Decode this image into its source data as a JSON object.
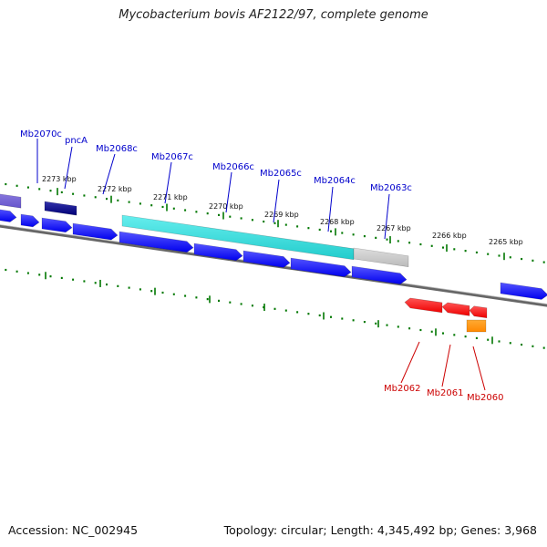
{
  "title": "Mycobacterium bovis AF2122/97, complete genome",
  "footer": {
    "accession": "Accession: NC_002945",
    "summary": "Topology: circular; Length: 4,345,492 bp; Genes: 3,968"
  },
  "tick_labels": [
    "2273 kbp",
    "2272 kbp",
    "2271 kbp",
    "2270 kbp",
    "2269 kbp",
    "2268 kbp",
    "2267 kbp",
    "2266 kbp",
    "2265 kbp"
  ],
  "gene_labels_forward": [
    "Mb2070c",
    "pncA",
    "Mb2068c",
    "Mb2067c",
    "Mb2066c",
    "Mb2065c",
    "Mb2064c",
    "Mb2063c"
  ],
  "gene_labels_reverse": [
    "Mb2062",
    "Mb2061",
    "Mb2060"
  ],
  "colors": {
    "cds_reverse_strand": "#0000ee",
    "cds_forward_strand": "#ee0000",
    "highlight_cyan": "#22cccc",
    "highlight_grey": "#bbbbbb",
    "highlight_navy": "#000077",
    "highlight_purple": "#6655cc",
    "orange_feature": "#ff8800",
    "label_blue": "#0000cc",
    "label_red": "#cc0000",
    "tick_green": "#007700",
    "backbone": "#666666"
  }
}
